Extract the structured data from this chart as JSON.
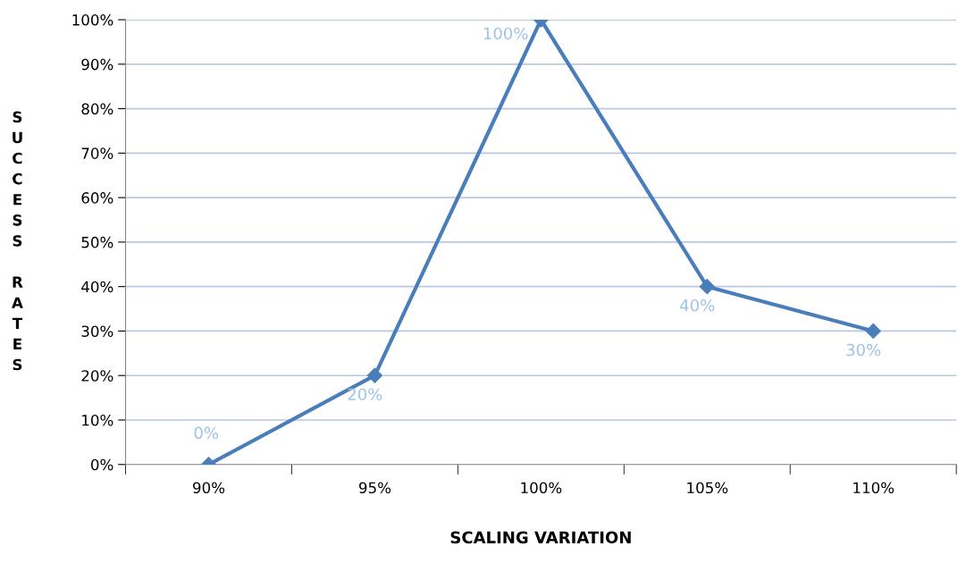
{
  "chart_data": {
    "type": "line",
    "xlabel": "SCALING VARIATION",
    "ylabel": "SUCCESS RATES",
    "categories": [
      "90%",
      "95%",
      "100%",
      "105%",
      "110%"
    ],
    "series": [
      {
        "color": "#4a7ebb",
        "values": [
          0,
          20,
          100,
          40,
          30
        ],
        "value_labels": [
          "0%",
          "20%",
          "100%",
          "40%",
          "30%"
        ]
      }
    ],
    "ylim": [
      0,
      100
    ],
    "yticks": [
      {
        "value": 0,
        "label": "0%"
      },
      {
        "value": 10,
        "label": "10%"
      },
      {
        "value": 20,
        "label": "20%"
      },
      {
        "value": 30,
        "label": "30%"
      },
      {
        "value": 40,
        "label": "40%"
      },
      {
        "value": 50,
        "label": "50%"
      },
      {
        "value": 60,
        "label": "60%"
      },
      {
        "value": 70,
        "label": "70%"
      },
      {
        "value": 80,
        "label": "80%"
      },
      {
        "value": 90,
        "label": "90%"
      },
      {
        "value": 100,
        "label": "100%"
      }
    ],
    "grid": "y",
    "marker": "diamond",
    "line_style": "solid",
    "legend": false
  }
}
